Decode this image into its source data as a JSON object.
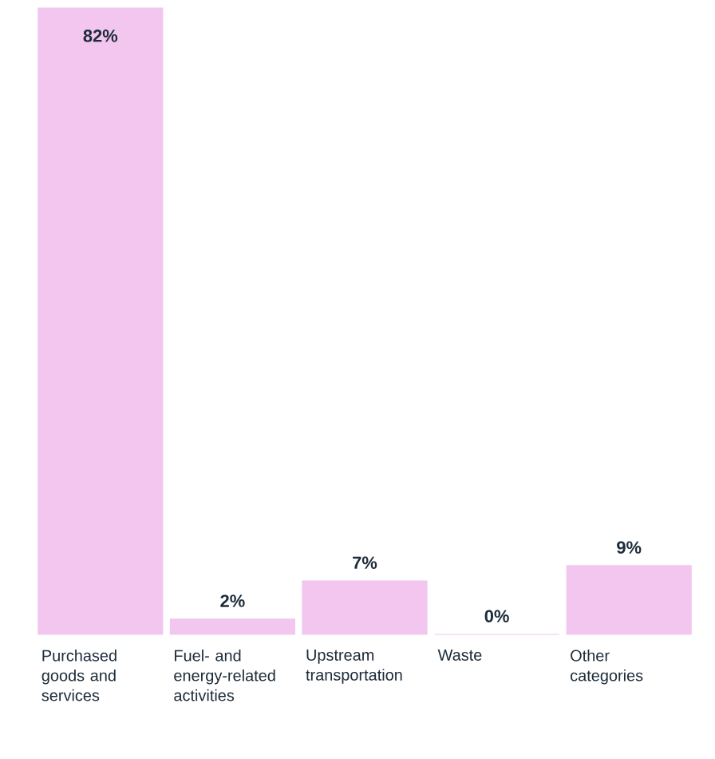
{
  "chart_data": {
    "type": "bar",
    "categories": [
      "Purchased goods and services",
      "Fuel- and energy-related activities",
      "Upstream transportation",
      "Waste",
      "Other categories"
    ],
    "values": [
      82,
      2,
      7,
      0,
      9
    ],
    "value_labels": [
      "82%",
      "2%",
      "7%",
      "0%",
      "9%"
    ],
    "color": "#f2c6ef"
  }
}
